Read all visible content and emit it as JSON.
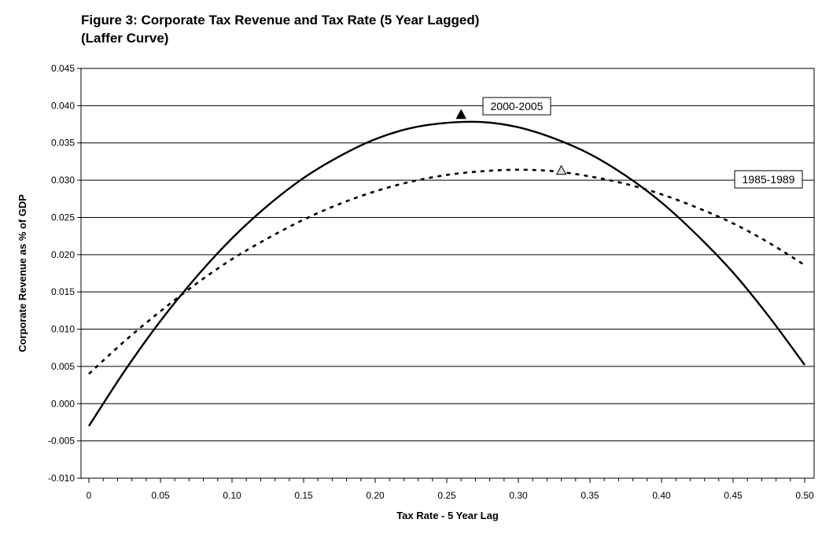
{
  "chart_data": {
    "type": "line",
    "title": "Figure 3: Corporate Tax Revenue and Tax Rate (5 Year Lagged)",
    "subtitle": "(Laffer Curve)",
    "xlabel": "Tax Rate - 5 Year Lag",
    "ylabel": "Corporate Revenue as % of GDP",
    "xlim": [
      0,
      0.5
    ],
    "ylim": [
      -0.01,
      0.045
    ],
    "x_ticks": [
      "0",
      "0.05",
      "0.10",
      "0.15",
      "0.20",
      "0.25",
      "0.30",
      "0.35",
      "0.40",
      "0.45",
      "0.50"
    ],
    "y_ticks": [
      "0.045",
      "0.040",
      "0.035",
      "0.030",
      "0.025",
      "0.020",
      "0.015",
      "0.010",
      "0.005",
      "0.000",
      "-0.005",
      "-0.010"
    ],
    "grid": "horizontal",
    "series": [
      {
        "name": "2000-2005",
        "style": "solid",
        "x": [
          0,
          0.025,
          0.05,
          0.075,
          0.1,
          0.125,
          0.15,
          0.175,
          0.2,
          0.225,
          0.25,
          0.275,
          0.3,
          0.325,
          0.35,
          0.375,
          0.4,
          0.425,
          0.45,
          0.475,
          0.5
        ],
        "values": [
          -0.003,
          0.0044,
          0.0111,
          0.017,
          0.0222,
          0.0266,
          0.0303,
          0.0332,
          0.0355,
          0.037,
          0.0377,
          0.0378,
          0.0371,
          0.0356,
          0.0335,
          0.0306,
          0.027,
          0.0226,
          0.0176,
          0.0117,
          0.0052
        ],
        "marker": {
          "x": 0.26,
          "y": 0.0388,
          "shape": "filled-triangle"
        },
        "label": "2000-2005"
      },
      {
        "name": "1985-1989",
        "style": "dotted",
        "x": [
          0,
          0.025,
          0.05,
          0.075,
          0.1,
          0.125,
          0.15,
          0.175,
          0.2,
          0.225,
          0.25,
          0.275,
          0.3,
          0.325,
          0.35,
          0.375,
          0.4,
          0.425,
          0.45,
          0.475,
          0.5
        ],
        "values": [
          0.004,
          0.0084,
          0.0124,
          0.0161,
          0.0194,
          0.0222,
          0.0247,
          0.0268,
          0.0285,
          0.0298,
          0.0307,
          0.0312,
          0.0314,
          0.0312,
          0.0305,
          0.0295,
          0.0281,
          0.0263,
          0.0242,
          0.0216,
          0.0186
        ],
        "marker": {
          "x": 0.33,
          "y": 0.0313,
          "shape": "open-triangle"
        },
        "label": "1985-1989"
      }
    ]
  }
}
